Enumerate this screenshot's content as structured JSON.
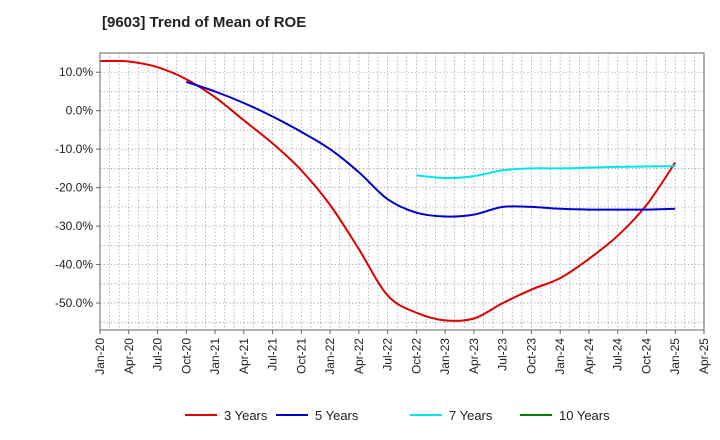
{
  "chart_data": {
    "type": "line",
    "title": "[9603]  Trend of Mean of ROE",
    "xlabel": "",
    "ylabel": "",
    "x_ticks": [
      "Jan-20",
      "Apr-20",
      "Jul-20",
      "Oct-20",
      "Jan-21",
      "Apr-21",
      "Jul-21",
      "Oct-21",
      "Jan-22",
      "Apr-22",
      "Jul-22",
      "Oct-22",
      "Jan-23",
      "Apr-23",
      "Jul-23",
      "Oct-23",
      "Jan-24",
      "Apr-24",
      "Jul-24",
      "Oct-24",
      "Jan-25",
      "Apr-25"
    ],
    "y_ticks": [
      "10.0%",
      "0.0%",
      "-10.0%",
      "-20.0%",
      "-30.0%",
      "-40.0%",
      "-50.0%"
    ],
    "y_tick_values": [
      10,
      0,
      -10,
      -20,
      -30,
      -40,
      -50
    ],
    "ylim": [
      -57,
      15
    ],
    "grid": true,
    "legend_position": "bottom",
    "series": [
      {
        "name": "3 Years",
        "color": "#dd0000",
        "x": [
          "Jan-20",
          "Apr-20",
          "Jul-20",
          "Oct-20",
          "Jan-21",
          "Apr-21",
          "Jul-21",
          "Oct-21",
          "Jan-22",
          "Apr-22",
          "Jul-22",
          "Oct-22",
          "Jan-23",
          "Apr-23",
          "Jul-23",
          "Oct-23",
          "Jan-24",
          "Apr-24",
          "Jul-24",
          "Oct-24",
          "Jan-25"
        ],
        "values": [
          12.9,
          12.8,
          11.3,
          8.2,
          3.5,
          -2.5,
          -8.5,
          -15.5,
          -24.5,
          -36.0,
          -48.0,
          -52.5,
          -54.5,
          -54.0,
          -50.0,
          -46.5,
          -43.5,
          -38.5,
          -32.5,
          -24.5,
          -13.5
        ]
      },
      {
        "name": "5 Years",
        "color": "#0000cc",
        "x": [
          "Oct-20",
          "Jan-21",
          "Apr-21",
          "Jul-21",
          "Oct-21",
          "Jan-22",
          "Apr-22",
          "Jul-22",
          "Oct-22",
          "Jan-23",
          "Apr-23",
          "Jul-23",
          "Oct-23",
          "Jan-24",
          "Apr-24",
          "Jul-24",
          "Oct-24",
          "Jan-25"
        ],
        "values": [
          7.5,
          5.0,
          2.0,
          -1.5,
          -5.5,
          -10.0,
          -16.0,
          -23.0,
          -26.5,
          -27.5,
          -27.0,
          -25.0,
          -25.0,
          -25.5,
          -25.7,
          -25.7,
          -25.7,
          -25.5
        ]
      },
      {
        "name": "7 Years",
        "color": "#00e5ee",
        "x": [
          "Oct-22",
          "Jan-23",
          "Apr-23",
          "Jul-23",
          "Oct-23",
          "Jan-24",
          "Apr-24",
          "Jul-24",
          "Oct-24",
          "Jan-25"
        ],
        "values": [
          -16.8,
          -17.5,
          -17.0,
          -15.5,
          -15.0,
          -15.0,
          -14.8,
          -14.6,
          -14.5,
          -14.4
        ]
      },
      {
        "name": "10 Years",
        "color": "#008000",
        "x": [],
        "values": []
      }
    ]
  }
}
